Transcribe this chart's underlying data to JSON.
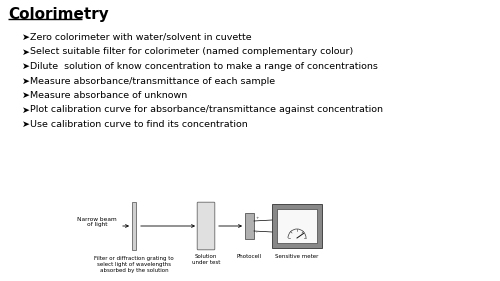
{
  "title": "Colorimetry",
  "background_color": "#ffffff",
  "title_fontsize": 11,
  "bullet_points": [
    "Zero colorimeter with water/solvent in cuvette",
    "Select suitable filter for colorimeter (named complementary colour)",
    "Dilute  solution of know concentration to make a range of concentrations",
    "Measure absorbance/transmittance of each sample",
    "Measure absorbance of unknown",
    "Plot calibration curve for absorbance/transmittance against concentration",
    "Use calibration curve to find its concentration"
  ],
  "text_fontsize": 6.8,
  "diagram": {
    "narrow_beam_label": "Narrow beam\nof light",
    "filter_label": "Filter or diffraction grating to\nselect light of wavelengths\nabsorbed by the solution",
    "solution_label": "Solution\nunder test",
    "photocell_label": "Photocell",
    "meter_label": "Sensitive meter",
    "label_fontsize": 4.0,
    "beam_label_fontsize": 4.2
  }
}
